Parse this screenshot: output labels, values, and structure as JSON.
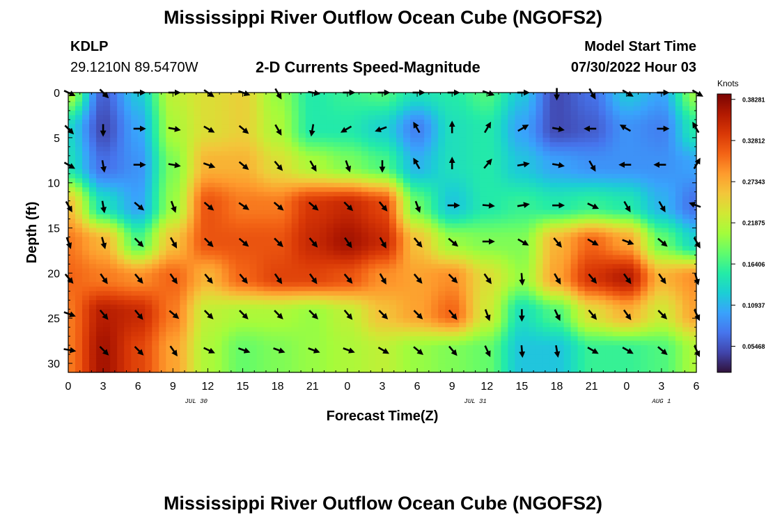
{
  "header": {
    "title": "Mississippi River Outflow Ocean Cube (NGOFS2)",
    "station": "KDLP",
    "coords": "29.1210N  89.5470W",
    "subtitle": "2-D Currents Speed-Magnitude",
    "start_label": "Model Start Time",
    "start_time": "07/30/2022 Hour 03"
  },
  "footer": {
    "title": "Mississippi River Outflow Ocean Cube (NGOFS2)"
  },
  "chart_data": {
    "type": "heatmap",
    "xlabel": "Forecast Time(Z)",
    "ylabel": "Depth (ft)",
    "x_tick_labels": [
      "0",
      "3",
      "6",
      "9",
      "12",
      "15",
      "18",
      "21",
      "0",
      "3",
      "6",
      "9",
      "12",
      "15",
      "18",
      "21",
      "0",
      "3",
      "6"
    ],
    "x_tick_hours": [
      0,
      3,
      6,
      9,
      12,
      15,
      18,
      21,
      24,
      27,
      30,
      33,
      36,
      39,
      42,
      45,
      48,
      51,
      54
    ],
    "date_labels": [
      {
        "label": "JUL 30",
        "hour": 11
      },
      {
        "label": "JUL 31",
        "hour": 35
      },
      {
        "label": "AUG 1",
        "hour": 51
      }
    ],
    "y_ticks": [
      0,
      5,
      10,
      15,
      20,
      25,
      30
    ],
    "ylim": [
      0,
      31
    ],
    "xlim": [
      0,
      54
    ],
    "colorbar": {
      "title": "Knots",
      "tick_labels": [
        "0.38281",
        "0.32812",
        "0.27343",
        "0.21875",
        "0.16406",
        "0.10937",
        "0.05468"
      ],
      "tick_values": [
        0.38281,
        0.32812,
        0.27343,
        0.21875,
        0.16406,
        0.10937,
        0.05468
      ],
      "range": [
        0.02,
        0.39
      ],
      "colors": [
        "#30123b",
        "#4145ab",
        "#4675ed",
        "#39a2fc",
        "#1bcfd4",
        "#24eca6",
        "#61fc6c",
        "#a4fc3b",
        "#d1e834",
        "#f3c63a",
        "#fe9b2d",
        "#f36315",
        "#d93806",
        "#b11901",
        "#7a0403"
      ]
    },
    "depths": [
      0,
      4,
      8,
      12.5,
      16.5,
      20.5,
      24.5,
      28.5
    ],
    "arrow_hours": [
      0,
      3,
      6,
      9,
      12,
      15,
      18,
      21,
      24,
      27,
      30,
      33,
      36,
      39,
      42,
      45,
      48,
      51,
      54
    ],
    "speed_grid": [
      [
        0.21,
        0.06,
        0.12,
        0.22,
        0.24,
        0.25,
        0.2,
        0.15,
        0.16,
        0.17,
        0.14,
        0.15,
        0.17,
        0.12,
        0.05,
        0.07,
        0.12,
        0.1,
        0.2
      ],
      [
        0.13,
        0.05,
        0.1,
        0.21,
        0.24,
        0.25,
        0.21,
        0.15,
        0.15,
        0.13,
        0.08,
        0.14,
        0.15,
        0.1,
        0.05,
        0.06,
        0.09,
        0.08,
        0.15
      ],
      [
        0.14,
        0.07,
        0.09,
        0.19,
        0.27,
        0.27,
        0.24,
        0.21,
        0.19,
        0.17,
        0.11,
        0.14,
        0.15,
        0.12,
        0.1,
        0.09,
        0.09,
        0.09,
        0.1
      ],
      [
        0.26,
        0.14,
        0.1,
        0.2,
        0.32,
        0.3,
        0.3,
        0.34,
        0.35,
        0.33,
        0.18,
        0.12,
        0.15,
        0.16,
        0.15,
        0.16,
        0.15,
        0.11,
        0.07
      ],
      [
        0.3,
        0.27,
        0.17,
        0.26,
        0.32,
        0.32,
        0.32,
        0.35,
        0.37,
        0.35,
        0.26,
        0.2,
        0.19,
        0.19,
        0.27,
        0.31,
        0.28,
        0.18,
        0.13
      ],
      [
        0.31,
        0.3,
        0.29,
        0.31,
        0.27,
        0.31,
        0.33,
        0.33,
        0.32,
        0.29,
        0.28,
        0.29,
        0.24,
        0.2,
        0.28,
        0.34,
        0.36,
        0.27,
        0.29
      ],
      [
        0.3,
        0.36,
        0.35,
        0.3,
        0.22,
        0.21,
        0.21,
        0.2,
        0.22,
        0.26,
        0.28,
        0.31,
        0.23,
        0.14,
        0.17,
        0.24,
        0.27,
        0.23,
        0.28
      ],
      [
        0.3,
        0.37,
        0.33,
        0.28,
        0.21,
        0.18,
        0.19,
        0.2,
        0.21,
        0.22,
        0.2,
        0.19,
        0.18,
        0.12,
        0.12,
        0.16,
        0.16,
        0.17,
        0.21
      ]
    ],
    "arrow_dirs": [
      [
        115,
        135,
        90,
        90,
        125,
        110,
        150,
        100,
        90,
        90,
        90,
        90,
        110,
        90,
        180,
        150,
        120,
        90,
        120
      ],
      [
        135,
        180,
        90,
        100,
        120,
        130,
        150,
        190,
        240,
        250,
        330,
        0,
        30,
        60,
        100,
        270,
        300,
        90,
        330
      ],
      [
        120,
        170,
        90,
        100,
        110,
        130,
        140,
        150,
        160,
        180,
        330,
        0,
        40,
        80,
        100,
        150,
        270,
        270,
        30
      ],
      [
        150,
        170,
        130,
        160,
        130,
        125,
        130,
        130,
        135,
        140,
        160,
        90,
        95,
        80,
        90,
        115,
        150,
        150,
        290
      ],
      [
        160,
        165,
        135,
        150,
        135,
        130,
        135,
        140,
        145,
        150,
        140,
        130,
        90,
        120,
        140,
        120,
        110,
        130,
        150
      ],
      [
        140,
        145,
        140,
        145,
        140,
        140,
        145,
        145,
        140,
        150,
        140,
        135,
        145,
        175,
        150,
        140,
        145,
        145,
        165
      ],
      [
        110,
        140,
        140,
        130,
        135,
        135,
        135,
        135,
        140,
        135,
        135,
        140,
        160,
        180,
        155,
        140,
        145,
        135,
        155
      ],
      [
        100,
        135,
        135,
        145,
        115,
        110,
        110,
        110,
        110,
        120,
        130,
        140,
        155,
        175,
        170,
        120,
        120,
        130,
        155
      ]
    ]
  }
}
